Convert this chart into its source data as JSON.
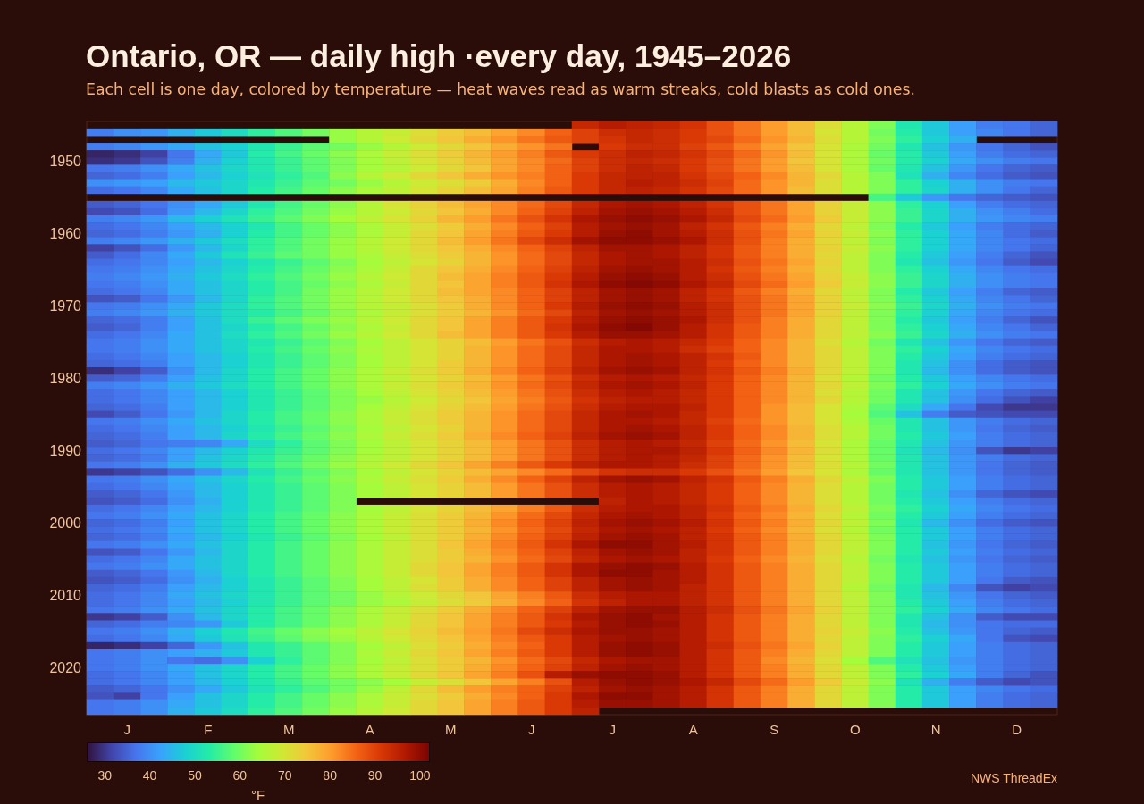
{
  "chart_data": {
    "type": "heatmap",
    "title": "Ontario, OR — daily high ·every day, 1945–2026",
    "subtitle": "Each cell is one day, colored by temperature — heat waves read as warm streaks, cold blasts as cold ones.",
    "categories": [
      null,
      "J",
      null,
      null,
      "F",
      null,
      null,
      "M",
      null,
      null,
      "A",
      null,
      null,
      "M",
      null,
      null,
      "J",
      null,
      null,
      "J",
      null,
      null,
      "A",
      null,
      null,
      "S",
      null,
      null,
      "O",
      null,
      null,
      "N",
      null,
      null,
      "D",
      null
    ],
    "y_categories": [
      null,
      null,
      null,
      null,
      null,
      "1950",
      null,
      null,
      null,
      null,
      null,
      null,
      null,
      null,
      null,
      "1960",
      null,
      null,
      null,
      null,
      null,
      null,
      null,
      null,
      null,
      "1970",
      null,
      null,
      null,
      null,
      null,
      null,
      null,
      null,
      null,
      "1980",
      null,
      null,
      null,
      null,
      null,
      null,
      null,
      null,
      null,
      "1990",
      null,
      null,
      null,
      null,
      null,
      null,
      null,
      null,
      null,
      "2000",
      null,
      null,
      null,
      null,
      null,
      null,
      null,
      null,
      null,
      "2010",
      null,
      null,
      null,
      null,
      null,
      null,
      null,
      null,
      null,
      "2020",
      null,
      null,
      null,
      null,
      null,
      null
    ],
    "cells": [
      [
        null,
        null,
        null,
        null,
        null,
        null,
        null,
        null,
        null,
        null,
        null,
        null,
        null,
        null,
        null,
        null,
        null,
        null,
        94,
        96,
        95,
        94,
        92,
        88,
        84,
        80,
        76,
        71,
        66,
        61,
        52,
        47,
        42,
        38,
        37,
        35
      ],
      [
        38,
        40,
        41,
        44,
        47,
        50,
        54,
        57,
        60,
        63,
        66,
        68,
        71,
        74,
        76,
        79,
        82,
        86,
        90,
        93,
        94,
        93,
        91,
        88,
        84,
        80,
        76,
        70,
        66,
        60,
        53,
        47,
        42,
        39,
        37,
        35
      ],
      [
        null,
        null,
        null,
        null,
        null,
        null,
        null,
        null,
        null,
        63,
        66,
        69,
        72,
        75,
        78,
        81,
        84,
        87,
        90,
        92,
        94,
        93,
        91,
        89,
        85,
        81,
        77,
        71,
        66,
        61,
        54,
        48,
        44,
        null,
        null,
        null
      ],
      [
        38,
        39,
        41,
        43,
        46,
        48,
        52,
        55,
        58,
        60,
        63,
        66,
        69,
        72,
        75,
        78,
        81,
        84,
        null,
        91,
        93,
        93,
        90,
        87,
        83,
        79,
        75,
        70,
        65,
        60,
        52,
        46,
        41,
        37,
        35,
        33
      ],
      [
        28,
        29,
        31,
        37,
        43,
        47,
        53,
        56,
        59,
        62,
        65,
        68,
        71,
        74,
        77,
        80,
        83,
        87,
        91,
        93,
        95,
        94,
        92,
        89,
        85,
        81,
        76,
        70,
        65,
        59,
        53,
        47,
        42,
        38,
        36,
        35
      ],
      [
        29,
        30,
        33,
        38,
        44,
        48,
        52,
        55,
        58,
        61,
        64,
        67,
        70,
        73,
        76,
        79,
        82,
        85,
        90,
        93,
        94,
        93,
        91,
        88,
        84,
        80,
        75,
        70,
        65,
        60,
        53,
        48,
        43,
        40,
        38,
        37
      ],
      [
        37,
        38,
        40,
        43,
        46,
        49,
        52,
        55,
        58,
        61,
        64,
        66,
        69,
        72,
        75,
        79,
        82,
        86,
        90,
        93,
        95,
        94,
        91,
        88,
        84,
        80,
        76,
        70,
        65,
        59,
        52,
        46,
        41,
        37,
        35,
        34
      ],
      [
        35,
        36,
        38,
        42,
        45,
        48,
        51,
        54,
        57,
        62,
        66,
        69,
        72,
        75,
        78,
        81,
        83,
        86,
        91,
        94,
        95,
        95,
        92,
        89,
        86,
        82,
        77,
        72,
        66,
        61,
        51,
        44,
        39,
        36,
        34,
        33
      ],
      [
        40,
        41,
        42,
        45,
        47,
        49,
        52,
        55,
        58,
        60,
        63,
        66,
        69,
        71,
        74,
        78,
        82,
        86,
        91,
        94,
        96,
        95,
        93,
        90,
        85,
        81,
        77,
        71,
        66,
        61,
        54,
        48,
        44,
        40,
        38,
        37
      ],
      [
        36,
        37,
        39,
        43,
        46,
        49,
        53,
        56,
        59,
        62,
        65,
        67,
        70,
        73,
        76,
        79,
        83,
        87,
        91,
        94,
        95,
        94,
        92,
        89,
        85,
        81,
        76,
        71,
        66,
        61,
        54,
        49,
        44,
        40,
        37,
        35
      ],
      [
        null,
        null,
        null,
        null,
        null,
        null,
        null,
        null,
        null,
        null,
        null,
        null,
        null,
        null,
        null,
        null,
        null,
        null,
        null,
        null,
        null,
        null,
        null,
        null,
        null,
        null,
        null,
        null,
        null,
        56,
        47,
        41,
        37,
        35,
        34,
        33
      ],
      [
        34,
        35,
        37,
        40,
        43,
        47,
        52,
        56,
        59,
        62,
        66,
        70,
        73,
        76,
        79,
        82,
        85,
        89,
        94,
        97,
        98,
        97,
        95,
        92,
        88,
        84,
        79,
        73,
        68,
        62,
        54,
        48,
        42,
        38,
        36,
        35
      ],
      [
        32,
        33,
        36,
        41,
        45,
        49,
        54,
        57,
        60,
        63,
        66,
        69,
        72,
        75,
        78,
        82,
        86,
        90,
        95,
        98,
        99,
        98,
        96,
        93,
        88,
        84,
        79,
        73,
        68,
        62,
        55,
        49,
        44,
        40,
        38,
        36
      ],
      [
        38,
        39,
        41,
        45,
        48,
        51,
        55,
        58,
        61,
        64,
        67,
        70,
        73,
        77,
        80,
        84,
        88,
        92,
        97,
        99,
        100,
        99,
        97,
        94,
        89,
        85,
        80,
        74,
        68,
        62,
        55,
        49,
        44,
        41,
        39,
        38
      ],
      [
        36,
        37,
        39,
        42,
        45,
        48,
        52,
        56,
        59,
        62,
        65,
        68,
        71,
        74,
        78,
        82,
        86,
        90,
        96,
        98,
        99,
        98,
        95,
        92,
        87,
        83,
        78,
        72,
        67,
        61,
        53,
        47,
        42,
        38,
        36,
        35
      ],
      [
        35,
        36,
        38,
        41,
        44,
        48,
        53,
        56,
        59,
        62,
        65,
        68,
        72,
        75,
        79,
        83,
        87,
        91,
        96,
        99,
        100,
        98,
        96,
        93,
        88,
        84,
        79,
        73,
        68,
        62,
        54,
        48,
        43,
        39,
        36,
        34
      ],
      [
        38,
        39,
        41,
        44,
        47,
        50,
        54,
        57,
        60,
        63,
        66,
        69,
        72,
        76,
        80,
        84,
        89,
        93,
        98,
        100,
        100,
        99,
        97,
        93,
        88,
        83,
        78,
        72,
        67,
        61,
        54,
        48,
        43,
        39,
        37,
        36
      ],
      [
        31,
        33,
        36,
        41,
        45,
        49,
        54,
        57,
        60,
        63,
        66,
        69,
        72,
        75,
        78,
        82,
        86,
        90,
        95,
        98,
        98,
        97,
        95,
        92,
        87,
        83,
        78,
        73,
        68,
        62,
        54,
        48,
        43,
        39,
        37,
        35
      ],
      [
        34,
        36,
        39,
        43,
        47,
        51,
        55,
        58,
        60,
        63,
        65,
        68,
        71,
        74,
        77,
        81,
        85,
        89,
        94,
        97,
        98,
        97,
        95,
        92,
        87,
        83,
        78,
        72,
        67,
        61,
        53,
        47,
        42,
        38,
        35,
        33
      ],
      [
        36,
        37,
        39,
        42,
        45,
        48,
        52,
        55,
        58,
        61,
        64,
        67,
        70,
        73,
        77,
        81,
        85,
        89,
        94,
        97,
        98,
        98,
        96,
        93,
        88,
        84,
        79,
        73,
        67,
        61,
        52,
        46,
        41,
        37,
        34,
        32
      ],
      [
        37,
        38,
        40,
        43,
        46,
        49,
        53,
        56,
        59,
        62,
        65,
        68,
        72,
        75,
        78,
        82,
        86,
        90,
        95,
        98,
        99,
        98,
        96,
        92,
        87,
        83,
        78,
        72,
        67,
        61,
        54,
        48,
        43,
        39,
        37,
        36
      ],
      [
        38,
        39,
        41,
        44,
        47,
        50,
        54,
        57,
        60,
        63,
        66,
        69,
        72,
        76,
        79,
        83,
        87,
        91,
        96,
        99,
        100,
        99,
        96,
        93,
        88,
        84,
        79,
        73,
        68,
        62,
        55,
        49,
        44,
        40,
        38,
        37
      ],
      [
        37,
        38,
        40,
        43,
        46,
        49,
        53,
        56,
        59,
        62,
        65,
        68,
        72,
        75,
        79,
        83,
        87,
        92,
        97,
        100,
        101,
        100,
        97,
        94,
        89,
        85,
        80,
        74,
        68,
        62,
        55,
        49,
        44,
        40,
        38,
        37
      ],
      [
        36,
        37,
        39,
        43,
        46,
        49,
        53,
        56,
        60,
        63,
        66,
        69,
        72,
        76,
        79,
        82,
        86,
        90,
        95,
        98,
        99,
        98,
        95,
        92,
        87,
        83,
        78,
        72,
        67,
        61,
        53,
        47,
        42,
        38,
        35,
        34
      ],
      [
        33,
        34,
        37,
        41,
        45,
        49,
        54,
        57,
        60,
        63,
        66,
        69,
        72,
        75,
        78,
        82,
        86,
        90,
        95,
        98,
        99,
        98,
        95,
        92,
        88,
        84,
        79,
        73,
        67,
        61,
        54,
        48,
        43,
        39,
        37,
        35
      ],
      [
        37,
        38,
        40,
        43,
        47,
        50,
        54,
        57,
        60,
        63,
        66,
        68,
        71,
        74,
        78,
        82,
        86,
        91,
        96,
        99,
        100,
        99,
        96,
        93,
        88,
        84,
        79,
        73,
        68,
        62,
        55,
        49,
        44,
        40,
        38,
        37
      ],
      [
        38,
        39,
        41,
        44,
        47,
        50,
        53,
        56,
        59,
        62,
        65,
        68,
        71,
        74,
        77,
        81,
        85,
        89,
        95,
        98,
        99,
        98,
        96,
        93,
        88,
        84,
        79,
        73,
        67,
        61,
        54,
        48,
        43,
        39,
        37,
        36
      ],
      [
        35,
        36,
        38,
        42,
        46,
        50,
        55,
        58,
        61,
        63,
        66,
        69,
        72,
        75,
        79,
        83,
        87,
        91,
        96,
        99,
        100,
        99,
        97,
        93,
        88,
        83,
        78,
        72,
        67,
        61,
        53,
        47,
        42,
        38,
        35,
        33
      ],
      [
        34,
        35,
        38,
        42,
        46,
        49,
        53,
        56,
        59,
        62,
        65,
        68,
        72,
        75,
        79,
        83,
        87,
        92,
        97,
        100,
        101,
        99,
        96,
        92,
        87,
        83,
        78,
        72,
        67,
        61,
        54,
        48,
        43,
        39,
        37,
        35
      ],
      [
        36,
        37,
        39,
        43,
        46,
        50,
        54,
        57,
        60,
        63,
        66,
        69,
        72,
        76,
        79,
        83,
        87,
        91,
        96,
        99,
        99,
        98,
        96,
        92,
        87,
        83,
        78,
        72,
        67,
        62,
        55,
        49,
        44,
        40,
        38,
        37
      ],
      [
        37,
        38,
        40,
        43,
        46,
        49,
        52,
        55,
        58,
        61,
        64,
        67,
        70,
        73,
        76,
        80,
        84,
        88,
        93,
        96,
        97,
        96,
        94,
        91,
        86,
        82,
        77,
        71,
        66,
        60,
        52,
        46,
        41,
        37,
        35,
        34
      ],
      [
        37,
        38,
        40,
        43,
        46,
        49,
        53,
        56,
        59,
        62,
        65,
        67,
        70,
        73,
        77,
        81,
        85,
        89,
        94,
        97,
        97,
        96,
        93,
        90,
        86,
        82,
        77,
        72,
        67,
        61,
        54,
        48,
        43,
        39,
        37,
        36
      ],
      [
        36,
        37,
        39,
        42,
        45,
        48,
        52,
        55,
        58,
        61,
        64,
        67,
        70,
        73,
        77,
        81,
        85,
        89,
        94,
        97,
        98,
        97,
        95,
        92,
        87,
        82,
        77,
        72,
        67,
        61,
        53,
        47,
        42,
        38,
        36,
        35
      ],
      [
        35,
        36,
        38,
        42,
        45,
        48,
        52,
        55,
        58,
        61,
        64,
        67,
        70,
        74,
        77,
        81,
        85,
        89,
        94,
        97,
        98,
        97,
        95,
        91,
        86,
        82,
        77,
        72,
        67,
        61,
        52,
        46,
        40,
        36,
        34,
        33
      ],
      [
        29,
        31,
        34,
        40,
        45,
        49,
        53,
        56,
        59,
        62,
        65,
        68,
        71,
        74,
        78,
        82,
        86,
        90,
        95,
        98,
        99,
        98,
        95,
        92,
        87,
        83,
        78,
        72,
        67,
        61,
        52,
        45,
        40,
        36,
        34,
        33
      ],
      [
        34,
        35,
        38,
        42,
        46,
        49,
        53,
        56,
        59,
        62,
        65,
        67,
        70,
        73,
        76,
        80,
        84,
        88,
        93,
        96,
        97,
        96,
        94,
        91,
        86,
        82,
        77,
        71,
        66,
        60,
        53,
        47,
        42,
        39,
        37,
        36
      ],
      [
        38,
        39,
        41,
        44,
        47,
        50,
        53,
        56,
        59,
        62,
        65,
        68,
        71,
        74,
        77,
        81,
        85,
        89,
        94,
        97,
        98,
        97,
        95,
        91,
        86,
        82,
        77,
        72,
        67,
        61,
        54,
        48,
        43,
        40,
        38,
        37
      ],
      [
        36,
        37,
        39,
        42,
        45,
        48,
        52,
        55,
        58,
        61,
        64,
        67,
        70,
        73,
        76,
        80,
        84,
        88,
        93,
        96,
        97,
        96,
        94,
        91,
        86,
        82,
        77,
        71,
        66,
        60,
        52,
        46,
        41,
        37,
        35,
        34
      ],
      [
        36,
        37,
        39,
        42,
        45,
        48,
        52,
        55,
        58,
        61,
        63,
        66,
        69,
        72,
        75,
        79,
        83,
        87,
        92,
        95,
        96,
        96,
        94,
        91,
        86,
        82,
        77,
        72,
        66,
        60,
        52,
        46,
        40,
        36,
        33,
        31
      ],
      [
        35,
        36,
        38,
        42,
        45,
        48,
        52,
        55,
        58,
        61,
        64,
        67,
        70,
        73,
        76,
        80,
        84,
        88,
        93,
        96,
        97,
        97,
        95,
        91,
        86,
        81,
        76,
        70,
        65,
        58,
        50,
        43,
        37,
        32,
        30,
        30
      ],
      [
        32,
        34,
        37,
        41,
        45,
        49,
        53,
        56,
        59,
        62,
        65,
        68,
        71,
        74,
        77,
        81,
        85,
        89,
        94,
        97,
        98,
        97,
        94,
        91,
        86,
        81,
        76,
        70,
        64,
        57,
        46,
        38,
        34,
        33,
        32,
        32
      ],
      [
        37,
        38,
        40,
        43,
        46,
        49,
        53,
        56,
        59,
        62,
        65,
        68,
        71,
        74,
        77,
        81,
        85,
        89,
        94,
        97,
        97,
        96,
        94,
        90,
        85,
        81,
        76,
        70,
        65,
        59,
        52,
        46,
        41,
        38,
        36,
        35
      ],
      [
        36,
        37,
        39,
        42,
        45,
        48,
        52,
        55,
        58,
        61,
        64,
        67,
        70,
        73,
        77,
        81,
        85,
        89,
        94,
        97,
        98,
        97,
        95,
        91,
        86,
        82,
        77,
        71,
        66,
        60,
        52,
        46,
        41,
        37,
        35,
        34
      ],
      [
        35,
        36,
        38,
        42,
        45,
        49,
        53,
        56,
        59,
        62,
        65,
        68,
        71,
        74,
        78,
        82,
        86,
        90,
        95,
        98,
        99,
        98,
        95,
        91,
        86,
        82,
        77,
        71,
        66,
        60,
        53,
        47,
        42,
        38,
        36,
        35
      ],
      [
        34,
        35,
        37,
        38,
        39,
        43,
        50,
        54,
        58,
        61,
        64,
        67,
        70,
        73,
        76,
        80,
        84,
        88,
        93,
        96,
        97,
        96,
        94,
        90,
        85,
        81,
        76,
        70,
        65,
        59,
        52,
        46,
        41,
        38,
        36,
        35
      ],
      [
        36,
        37,
        39,
        42,
        45,
        48,
        52,
        55,
        58,
        61,
        64,
        67,
        70,
        73,
        76,
        80,
        84,
        88,
        93,
        96,
        97,
        97,
        95,
        91,
        86,
        82,
        77,
        71,
        65,
        59,
        51,
        45,
        40,
        33,
        30,
        31
      ],
      [
        35,
        36,
        38,
        42,
        46,
        49,
        53,
        56,
        59,
        62,
        65,
        67,
        70,
        73,
        76,
        80,
        84,
        88,
        93,
        96,
        97,
        96,
        94,
        90,
        85,
        81,
        76,
        70,
        65,
        59,
        52,
        46,
        41,
        38,
        36,
        35
      ],
      [
        37,
        38,
        40,
        44,
        47,
        50,
        54,
        57,
        60,
        63,
        66,
        69,
        72,
        75,
        79,
        83,
        87,
        91,
        95,
        97,
        97,
        96,
        93,
        90,
        85,
        81,
        76,
        71,
        66,
        60,
        52,
        46,
        41,
        37,
        35,
        34
      ],
      [
        30,
        31,
        33,
        36,
        40,
        45,
        51,
        55,
        58,
        61,
        64,
        67,
        70,
        73,
        76,
        79,
        82,
        85,
        89,
        92,
        93,
        93,
        91,
        88,
        84,
        80,
        75,
        70,
        65,
        59,
        52,
        46,
        41,
        37,
        35,
        34
      ],
      [
        37,
        38,
        40,
        43,
        46,
        49,
        53,
        56,
        59,
        62,
        65,
        68,
        71,
        74,
        78,
        82,
        86,
        90,
        95,
        98,
        99,
        98,
        95,
        92,
        87,
        83,
        78,
        72,
        67,
        61,
        53,
        47,
        42,
        38,
        36,
        35
      ],
      [
        36,
        37,
        39,
        42,
        45,
        48,
        52,
        55,
        58,
        61,
        64,
        67,
        70,
        73,
        76,
        80,
        84,
        88,
        93,
        96,
        97,
        96,
        94,
        91,
        86,
        82,
        77,
        71,
        66,
        60,
        53,
        47,
        42,
        38,
        36,
        35
      ],
      [
        34,
        35,
        37,
        41,
        45,
        48,
        52,
        55,
        58,
        61,
        64,
        67,
        70,
        73,
        76,
        80,
        84,
        88,
        93,
        96,
        97,
        96,
        94,
        91,
        86,
        82,
        77,
        71,
        66,
        60,
        52,
        46,
        40,
        35,
        33,
        32
      ],
      [
        33,
        34,
        36,
        40,
        44,
        48,
        52,
        55,
        58,
        61,
        null,
        null,
        null,
        null,
        null,
        null,
        null,
        null,
        null,
        95,
        97,
        96,
        94,
        91,
        86,
        82,
        77,
        71,
        66,
        60,
        53,
        47,
        42,
        38,
        36,
        35
      ],
      [
        36,
        37,
        39,
        42,
        45,
        48,
        52,
        55,
        58,
        61,
        64,
        67,
        70,
        73,
        76,
        79,
        83,
        87,
        93,
        96,
        97,
        97,
        95,
        92,
        87,
        83,
        78,
        72,
        67,
        61,
        54,
        48,
        43,
        39,
        37,
        36
      ],
      [
        37,
        38,
        40,
        43,
        46,
        49,
        53,
        56,
        59,
        62,
        65,
        68,
        71,
        74,
        77,
        81,
        85,
        89,
        94,
        97,
        98,
        97,
        95,
        91,
        86,
        82,
        77,
        71,
        66,
        60,
        53,
        47,
        42,
        38,
        36,
        35
      ],
      [
        35,
        36,
        38,
        42,
        46,
        49,
        53,
        56,
        59,
        62,
        65,
        68,
        71,
        74,
        78,
        82,
        86,
        90,
        95,
        98,
        99,
        98,
        96,
        92,
        87,
        83,
        78,
        72,
        67,
        61,
        52,
        45,
        40,
        36,
        34,
        33
      ],
      [
        36,
        37,
        39,
        43,
        46,
        49,
        53,
        56,
        59,
        62,
        65,
        68,
        71,
        74,
        77,
        81,
        85,
        89,
        94,
        97,
        98,
        97,
        95,
        91,
        86,
        82,
        77,
        71,
        66,
        60,
        53,
        47,
        42,
        38,
        36,
        35
      ],
      [
        35,
        36,
        38,
        42,
        45,
        48,
        52,
        55,
        58,
        61,
        64,
        67,
        71,
        74,
        78,
        82,
        86,
        90,
        95,
        98,
        99,
        98,
        95,
        92,
        87,
        83,
        78,
        72,
        67,
        61,
        53,
        47,
        42,
        38,
        36,
        35
      ],
      [
        37,
        38,
        40,
        43,
        46,
        49,
        53,
        56,
        59,
        62,
        65,
        68,
        71,
        75,
        79,
        83,
        87,
        92,
        97,
        100,
        100,
        98,
        96,
        92,
        87,
        83,
        78,
        72,
        67,
        61,
        53,
        46,
        41,
        37,
        35,
        34
      ],
      [
        33,
        34,
        37,
        41,
        45,
        49,
        53,
        56,
        59,
        62,
        65,
        68,
        71,
        74,
        78,
        82,
        86,
        90,
        95,
        98,
        99,
        98,
        95,
        92,
        87,
        83,
        78,
        72,
        67,
        61,
        53,
        47,
        42,
        38,
        36,
        35
      ],
      [
        36,
        37,
        39,
        43,
        46,
        49,
        53,
        56,
        59,
        62,
        65,
        68,
        71,
        74,
        77,
        81,
        85,
        89,
        94,
        97,
        98,
        97,
        95,
        91,
        86,
        82,
        77,
        71,
        66,
        60,
        52,
        46,
        41,
        37,
        35,
        34
      ],
      [
        37,
        38,
        40,
        43,
        46,
        49,
        53,
        56,
        59,
        62,
        65,
        68,
        72,
        75,
        79,
        83,
        87,
        92,
        97,
        99,
        100,
        99,
        96,
        92,
        87,
        83,
        78,
        72,
        67,
        61,
        53,
        47,
        42,
        38,
        36,
        35
      ],
      [
        34,
        35,
        37,
        41,
        45,
        49,
        53,
        56,
        59,
        62,
        65,
        68,
        72,
        75,
        79,
        83,
        87,
        92,
        97,
        100,
        100,
        98,
        96,
        92,
        87,
        83,
        78,
        72,
        67,
        61,
        53,
        47,
        42,
        38,
        36,
        35
      ],
      [
        33,
        34,
        36,
        40,
        44,
        48,
        52,
        55,
        58,
        61,
        64,
        67,
        70,
        74,
        78,
        82,
        86,
        90,
        95,
        98,
        99,
        98,
        96,
        92,
        87,
        83,
        78,
        72,
        67,
        61,
        53,
        47,
        42,
        37,
        34,
        33
      ],
      [
        35,
        36,
        38,
        42,
        45,
        48,
        52,
        55,
        58,
        61,
        64,
        67,
        71,
        74,
        78,
        82,
        86,
        90,
        95,
        98,
        99,
        98,
        95,
        92,
        87,
        83,
        78,
        72,
        66,
        60,
        52,
        45,
        39,
        33,
        31,
        32
      ],
      [
        36,
        37,
        39,
        43,
        46,
        49,
        52,
        55,
        58,
        60,
        63,
        66,
        69,
        72,
        75,
        79,
        83,
        87,
        93,
        96,
        97,
        97,
        95,
        92,
        87,
        83,
        78,
        72,
        67,
        61,
        52,
        46,
        41,
        37,
        35,
        34
      ],
      [
        36,
        37,
        39,
        42,
        45,
        48,
        52,
        55,
        58,
        60,
        63,
        65,
        68,
        71,
        74,
        78,
        82,
        86,
        92,
        95,
        97,
        97,
        95,
        92,
        87,
        83,
        78,
        72,
        67,
        61,
        53,
        47,
        42,
        38,
        36,
        35
      ],
      [
        37,
        38,
        40,
        43,
        46,
        49,
        53,
        56,
        59,
        62,
        65,
        68,
        71,
        74,
        78,
        82,
        86,
        90,
        95,
        98,
        99,
        99,
        96,
        93,
        88,
        84,
        79,
        73,
        67,
        61,
        54,
        48,
        43,
        39,
        37,
        36
      ],
      [
        30,
        31,
        34,
        40,
        45,
        49,
        53,
        56,
        59,
        62,
        65,
        68,
        72,
        75,
        79,
        83,
        87,
        92,
        97,
        99,
        100,
        98,
        96,
        92,
        87,
        83,
        78,
        72,
        67,
        61,
        52,
        46,
        40,
        34,
        32,
        32
      ],
      [
        35,
        36,
        38,
        39,
        41,
        47,
        53,
        56,
        59,
        62,
        65,
        68,
        72,
        75,
        79,
        83,
        87,
        91,
        96,
        99,
        100,
        99,
        96,
        92,
        87,
        83,
        78,
        72,
        67,
        61,
        52,
        45,
        40,
        37,
        36,
        36
      ],
      [
        37,
        38,
        40,
        44,
        48,
        52,
        56,
        59,
        62,
        64,
        67,
        70,
        73,
        76,
        80,
        84,
        89,
        93,
        97,
        99,
        99,
        98,
        96,
        92,
        87,
        83,
        78,
        73,
        68,
        62,
        53,
        46,
        41,
        37,
        35,
        34
      ],
      [
        36,
        37,
        39,
        43,
        47,
        51,
        55,
        58,
        61,
        63,
        66,
        69,
        72,
        75,
        79,
        83,
        87,
        91,
        96,
        98,
        99,
        98,
        96,
        92,
        87,
        83,
        78,
        72,
        67,
        61,
        54,
        48,
        43,
        37,
        33,
        32
      ],
      [
        28,
        29,
        31,
        35,
        41,
        46,
        52,
        55,
        58,
        61,
        64,
        67,
        71,
        74,
        78,
        82,
        86,
        91,
        96,
        99,
        100,
        99,
        96,
        93,
        88,
        84,
        79,
        73,
        67,
        61,
        53,
        47,
        42,
        38,
        36,
        35
      ],
      [
        37,
        38,
        40,
        42,
        44,
        47,
        52,
        55,
        58,
        61,
        65,
        68,
        72,
        75,
        79,
        83,
        87,
        91,
        96,
        99,
        100,
        99,
        96,
        92,
        87,
        83,
        78,
        72,
        67,
        61,
        53,
        47,
        42,
        38,
        36,
        35
      ],
      [
        37,
        38,
        40,
        37,
        36,
        40,
        48,
        54,
        58,
        61,
        64,
        67,
        71,
        74,
        77,
        81,
        85,
        89,
        94,
        97,
        98,
        98,
        96,
        92,
        87,
        82,
        77,
        71,
        64,
        57,
        51,
        46,
        41,
        38,
        36,
        35
      ],
      [
        37,
        38,
        40,
        43,
        46,
        49,
        53,
        56,
        59,
        62,
        65,
        68,
        71,
        74,
        78,
        82,
        86,
        90,
        95,
        98,
        99,
        98,
        96,
        92,
        87,
        83,
        78,
        72,
        67,
        61,
        53,
        47,
        42,
        38,
        36,
        35
      ],
      [
        36,
        37,
        39,
        42,
        46,
        49,
        53,
        56,
        59,
        62,
        65,
        68,
        72,
        75,
        79,
        83,
        88,
        96,
        99,
        100,
        100,
        99,
        96,
        92,
        87,
        83,
        78,
        72,
        67,
        61,
        54,
        48,
        43,
        38,
        35,
        33
      ],
      [
        36,
        37,
        39,
        42,
        45,
        48,
        52,
        55,
        58,
        60,
        62,
        64,
        68,
        71,
        75,
        79,
        83,
        88,
        96,
        99,
        100,
        99,
        97,
        94,
        89,
        85,
        80,
        74,
        68,
        62,
        51,
        44,
        38,
        34,
        32,
        33
      ],
      [
        34,
        35,
        37,
        40,
        43,
        47,
        51,
        54,
        57,
        60,
        63,
        67,
        72,
        76,
        80,
        83,
        86,
        90,
        95,
        98,
        99,
        98,
        96,
        92,
        87,
        83,
        78,
        72,
        67,
        61,
        53,
        47,
        42,
        39,
        37,
        36
      ],
      [
        33,
        31,
        37,
        42,
        46,
        49,
        53,
        56,
        59,
        62,
        65,
        68,
        71,
        74,
        78,
        82,
        86,
        91,
        97,
        100,
        100,
        98,
        96,
        92,
        87,
        83,
        78,
        72,
        67,
        61,
        53,
        47,
        42,
        38,
        36,
        35
      ],
      [
        37,
        38,
        40,
        43,
        46,
        49,
        53,
        56,
        59,
        62,
        65,
        68,
        72,
        75,
        79,
        83,
        87,
        91,
        96,
        99,
        99,
        98,
        96,
        92,
        87,
        83,
        78,
        72,
        67,
        61,
        53,
        47,
        42,
        38,
        36,
        35
      ],
      [
        37,
        38,
        40,
        44,
        47,
        50,
        54,
        57,
        60,
        63,
        66,
        69,
        72,
        75,
        79,
        83,
        87,
        91,
        95,
        null,
        null,
        null,
        null,
        null,
        null,
        null,
        null,
        null,
        null,
        null,
        null,
        null,
        null,
        null,
        null,
        null
      ]
    ],
    "clim": [
      26,
      102
    ],
    "cticks": [
      30,
      40,
      50,
      60,
      70,
      80,
      90,
      100
    ],
    "clabel": "°F",
    "annotations": [
      "NWS ThreadEx"
    ]
  }
}
